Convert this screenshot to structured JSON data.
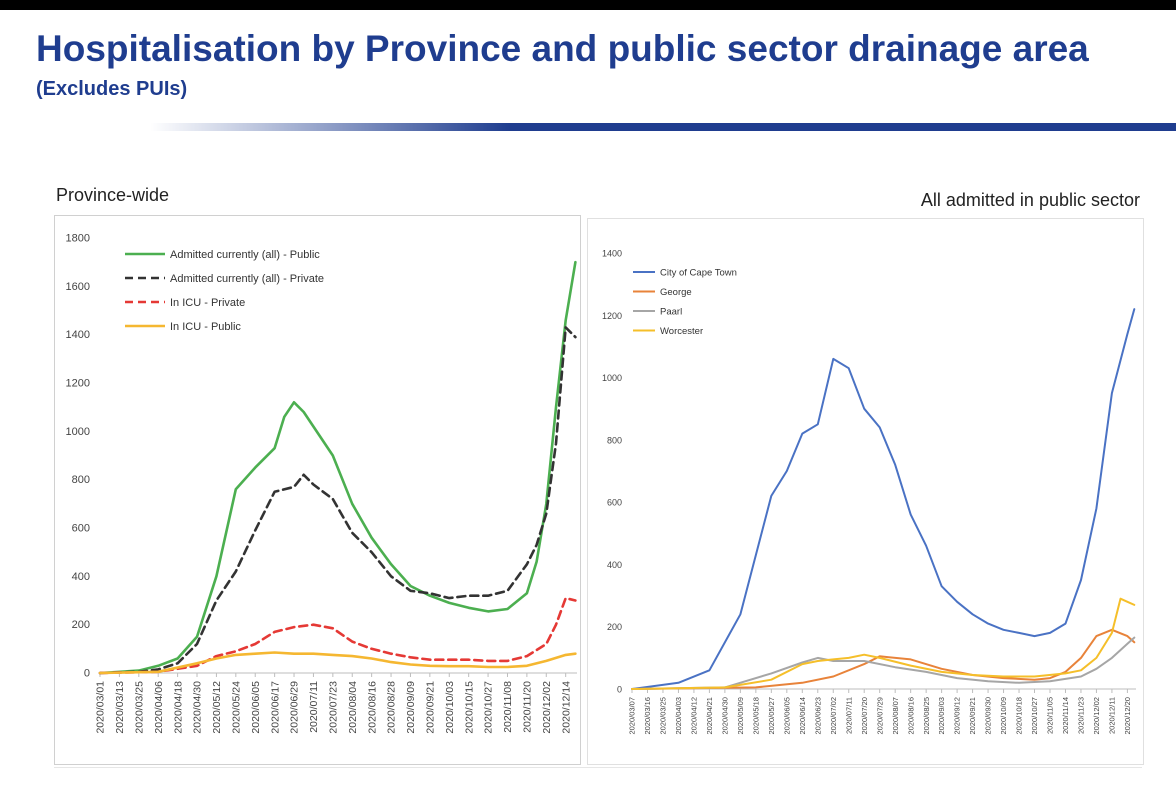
{
  "slide": {
    "title": "Hospitalisation by Province and public sector drainage area",
    "subtitle": "(Excludes PUIs)"
  },
  "colors": {
    "title": "#1f3d8f"
  },
  "chart_data": [
    {
      "id": "province-wide",
      "type": "line",
      "title": "Province-wide",
      "ylim": [
        0,
        1800
      ],
      "y_ticks": [
        0,
        200,
        400,
        600,
        800,
        1000,
        1200,
        1400,
        1600,
        1800
      ],
      "x_tick_labels": [
        "2020/03/01",
        "2020/03/13",
        "2020/03/25",
        "2020/04/06",
        "2020/04/18",
        "2020/04/30",
        "2020/05/12",
        "2020/05/24",
        "2020/06/05",
        "2020/06/17",
        "2020/06/29",
        "2020/07/11",
        "2020/07/23",
        "2020/08/04",
        "2020/08/16",
        "2020/08/28",
        "2020/09/09",
        "2020/09/21",
        "2020/10/03",
        "2020/10/15",
        "2020/10/27",
        "2020/11/08",
        "2020/11/20",
        "2020/12/02",
        "2020/12/14"
      ],
      "legend_position": "top-left",
      "series": [
        {
          "name": "Admitted currently (all) - Public",
          "color": "#4caf50",
          "dash": "solid",
          "x": [
            "2020/03/01",
            "2020/03/25",
            "2020/04/06",
            "2020/04/18",
            "2020/04/30",
            "2020/05/12",
            "2020/05/24",
            "2020/06/05",
            "2020/06/17",
            "2020/06/23",
            "2020/06/29",
            "2020/07/05",
            "2020/07/11",
            "2020/07/23",
            "2020/08/04",
            "2020/08/16",
            "2020/08/28",
            "2020/09/09",
            "2020/09/21",
            "2020/10/03",
            "2020/10/15",
            "2020/10/27",
            "2020/11/08",
            "2020/11/20",
            "2020/11/26",
            "2020/12/02",
            "2020/12/08",
            "2020/12/14",
            "2020/12/20"
          ],
          "values": [
            0,
            10,
            30,
            60,
            150,
            400,
            760,
            850,
            930,
            1060,
            1120,
            1080,
            1020,
            900,
            700,
            560,
            450,
            360,
            320,
            290,
            270,
            255,
            265,
            330,
            460,
            700,
            1100,
            1460,
            1700
          ]
        },
        {
          "name": "Admitted currently (all) - Private",
          "color": "#333333",
          "dash": "dashed",
          "x": [
            "2020/03/01",
            "2020/03/25",
            "2020/04/06",
            "2020/04/18",
            "2020/04/30",
            "2020/05/12",
            "2020/05/24",
            "2020/06/05",
            "2020/06/17",
            "2020/06/29",
            "2020/07/05",
            "2020/07/11",
            "2020/07/23",
            "2020/08/04",
            "2020/08/16",
            "2020/08/28",
            "2020/09/09",
            "2020/09/21",
            "2020/10/03",
            "2020/10/15",
            "2020/10/27",
            "2020/11/08",
            "2020/11/20",
            "2020/11/26",
            "2020/12/02",
            "2020/12/08",
            "2020/12/14",
            "2020/12/20"
          ],
          "values": [
            0,
            5,
            15,
            40,
            120,
            300,
            420,
            590,
            750,
            770,
            820,
            780,
            720,
            580,
            500,
            400,
            340,
            330,
            310,
            320,
            320,
            340,
            450,
            530,
            660,
            950,
            1430,
            1390
          ]
        },
        {
          "name": "In ICU - Private",
          "color": "#e53935",
          "dash": "dashed",
          "x": [
            "2020/03/01",
            "2020/04/06",
            "2020/04/30",
            "2020/05/12",
            "2020/05/24",
            "2020/06/05",
            "2020/06/17",
            "2020/06/29",
            "2020/07/11",
            "2020/07/23",
            "2020/08/04",
            "2020/08/16",
            "2020/08/28",
            "2020/09/09",
            "2020/09/21",
            "2020/10/03",
            "2020/10/15",
            "2020/10/27",
            "2020/11/08",
            "2020/11/20",
            "2020/12/02",
            "2020/12/08",
            "2020/12/14",
            "2020/12/20"
          ],
          "values": [
            0,
            5,
            30,
            70,
            90,
            120,
            170,
            190,
            200,
            185,
            130,
            100,
            80,
            65,
            55,
            55,
            55,
            50,
            50,
            70,
            120,
            200,
            310,
            300
          ]
        },
        {
          "name": "In ICU - Public",
          "color": "#f5b731",
          "dash": "solid",
          "x": [
            "2020/03/01",
            "2020/04/06",
            "2020/04/30",
            "2020/05/12",
            "2020/05/24",
            "2020/06/05",
            "2020/06/17",
            "2020/06/29",
            "2020/07/11",
            "2020/07/23",
            "2020/08/04",
            "2020/08/16",
            "2020/08/28",
            "2020/09/09",
            "2020/09/21",
            "2020/10/03",
            "2020/10/15",
            "2020/10/27",
            "2020/11/08",
            "2020/11/20",
            "2020/12/02",
            "2020/12/14",
            "2020/12/20"
          ],
          "values": [
            0,
            5,
            40,
            60,
            75,
            80,
            85,
            80,
            80,
            75,
            70,
            60,
            45,
            35,
            30,
            28,
            28,
            25,
            25,
            30,
            50,
            75,
            80
          ]
        }
      ]
    },
    {
      "id": "public-sector",
      "type": "line",
      "title": "All admitted in public sector",
      "ylim": [
        0,
        1400
      ],
      "y_ticks": [
        0,
        200,
        400,
        600,
        800,
        1000,
        1200,
        1400
      ],
      "x_tick_labels": [
        "2020/03/07",
        "2020/03/16",
        "2020/03/25",
        "2020/04/03",
        "2020/04/12",
        "2020/04/21",
        "2020/04/30",
        "2020/05/09",
        "2020/05/18",
        "2020/05/27",
        "2020/06/05",
        "2020/06/14",
        "2020/06/23",
        "2020/07/02",
        "2020/07/11",
        "2020/07/20",
        "2020/07/29",
        "2020/08/07",
        "2020/08/16",
        "2020/08/25",
        "2020/09/03",
        "2020/09/12",
        "2020/09/21",
        "2020/09/30",
        "2020/10/09",
        "2020/10/18",
        "2020/10/27",
        "2020/11/05",
        "2020/11/14",
        "2020/11/23",
        "2020/12/02",
        "2020/12/11",
        "2020/12/20"
      ],
      "legend_position": "top-left",
      "series": [
        {
          "name": "City of Cape Town",
          "color": "#4a72c4",
          "dash": "solid",
          "x": [
            "2020/03/07",
            "2020/04/03",
            "2020/04/21",
            "2020/05/09",
            "2020/05/27",
            "2020/06/05",
            "2020/06/14",
            "2020/06/23",
            "2020/07/02",
            "2020/07/11",
            "2020/07/20",
            "2020/07/29",
            "2020/08/07",
            "2020/08/16",
            "2020/08/25",
            "2020/09/03",
            "2020/09/12",
            "2020/09/21",
            "2020/09/30",
            "2020/10/09",
            "2020/10/18",
            "2020/10/27",
            "2020/11/05",
            "2020/11/14",
            "2020/11/23",
            "2020/12/02",
            "2020/12/11",
            "2020/12/20",
            "2020/12/24"
          ],
          "values": [
            0,
            20,
            60,
            240,
            620,
            700,
            820,
            850,
            1060,
            1030,
            900,
            840,
            720,
            560,
            460,
            330,
            280,
            240,
            210,
            190,
            180,
            170,
            180,
            210,
            350,
            580,
            950,
            1140,
            1220
          ]
        },
        {
          "name": "George",
          "color": "#e8833a",
          "dash": "solid",
          "x": [
            "2020/03/07",
            "2020/05/18",
            "2020/06/14",
            "2020/07/02",
            "2020/07/20",
            "2020/07/29",
            "2020/08/16",
            "2020/09/03",
            "2020/09/21",
            "2020/10/09",
            "2020/10/27",
            "2020/11/05",
            "2020/11/14",
            "2020/11/23",
            "2020/12/02",
            "2020/12/11",
            "2020/12/20",
            "2020/12/24"
          ],
          "values": [
            0,
            5,
            20,
            40,
            80,
            105,
            95,
            65,
            45,
            35,
            30,
            35,
            55,
            100,
            170,
            190,
            170,
            150
          ]
        },
        {
          "name": "Paarl",
          "color": "#a6a6a6",
          "dash": "solid",
          "x": [
            "2020/03/07",
            "2020/04/30",
            "2020/05/27",
            "2020/06/14",
            "2020/06/23",
            "2020/07/02",
            "2020/07/20",
            "2020/08/07",
            "2020/08/25",
            "2020/09/12",
            "2020/09/30",
            "2020/10/18",
            "2020/11/05",
            "2020/11/23",
            "2020/12/02",
            "2020/12/11",
            "2020/12/20",
            "2020/12/24"
          ],
          "values": [
            0,
            5,
            50,
            85,
            100,
            90,
            90,
            70,
            55,
            35,
            25,
            20,
            25,
            40,
            65,
            100,
            145,
            165
          ]
        },
        {
          "name": "Worcester",
          "color": "#f5bf2a",
          "dash": "solid",
          "x": [
            "2020/03/07",
            "2020/04/30",
            "2020/05/27",
            "2020/06/14",
            "2020/06/23",
            "2020/07/02",
            "2020/07/11",
            "2020/07/20",
            "2020/07/29",
            "2020/08/16",
            "2020/09/03",
            "2020/09/21",
            "2020/10/09",
            "2020/10/27",
            "2020/11/14",
            "2020/11/23",
            "2020/12/02",
            "2020/12/11",
            "2020/12/16",
            "2020/12/20",
            "2020/12/24"
          ],
          "values": [
            0,
            5,
            30,
            80,
            90,
            95,
            100,
            110,
            100,
            75,
            55,
            45,
            40,
            40,
            50,
            60,
            100,
            180,
            290,
            280,
            270
          ]
        }
      ]
    }
  ]
}
